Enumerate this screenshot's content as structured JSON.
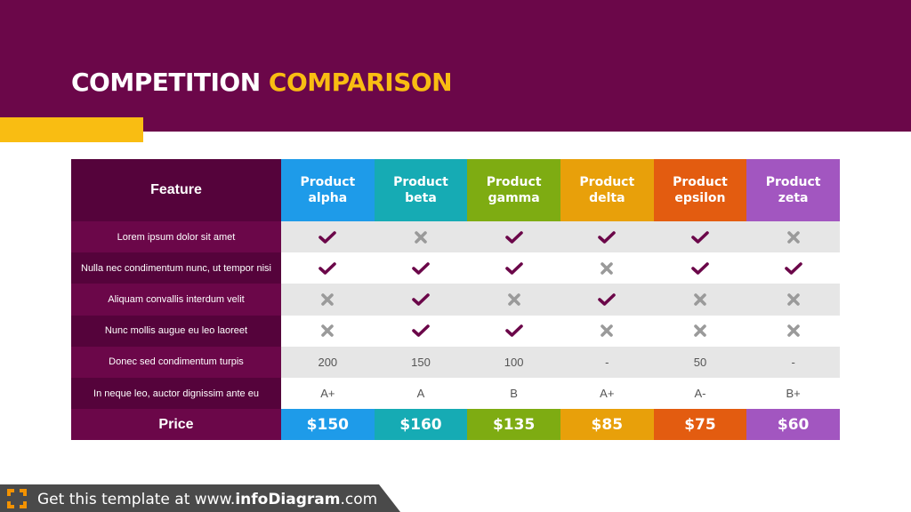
{
  "title": {
    "part1": "COMPETITION ",
    "part2": "COMPARISON"
  },
  "colors": {
    "header_bg": "#6b0749",
    "accent_yellow": "#f9bd12",
    "check": "#6b0749",
    "cross": "#9a9a9a"
  },
  "table": {
    "feature_header": "Feature",
    "products": [
      {
        "name": "Product alpha",
        "color": "#1e9be9",
        "price": "$150"
      },
      {
        "name": "Product beta",
        "color": "#16abb4",
        "price": "$160"
      },
      {
        "name": "Product gamma",
        "color": "#7eac12",
        "price": "$135"
      },
      {
        "name": "Product delta",
        "color": "#e8a00a",
        "price": "$85"
      },
      {
        "name": "Product epsilon",
        "color": "#e35c10",
        "price": "$75"
      },
      {
        "name": "Product zeta",
        "color": "#a256c0",
        "price": "$60"
      }
    ],
    "rows": [
      {
        "feature": "Lorem ipsum dolor sit amet",
        "values": [
          "check",
          "cross",
          "check",
          "check",
          "check",
          "cross"
        ]
      },
      {
        "feature": "Nulla nec condimentum nunc, ut tempor nisi",
        "values": [
          "check",
          "check",
          "check",
          "cross",
          "check",
          "check"
        ]
      },
      {
        "feature": "Aliquam convallis interdum velit",
        "values": [
          "cross",
          "check",
          "cross",
          "check",
          "cross",
          "cross"
        ]
      },
      {
        "feature": "Nunc mollis augue eu leo laoreet",
        "values": [
          "cross",
          "check",
          "check",
          "cross",
          "cross",
          "cross"
        ]
      },
      {
        "feature": "Donec sed condimentum turpis",
        "values": [
          "200",
          "150",
          "100",
          "-",
          "50",
          "-"
        ]
      },
      {
        "feature": "In neque leo, auctor dignissim ante eu",
        "values": [
          "A+",
          "A",
          "B",
          "A+",
          "A-",
          "B+"
        ]
      }
    ],
    "price_label": "Price"
  },
  "footer": {
    "prefix": "Get this template at www.",
    "brand": "infoDiagram",
    "suffix": ".com"
  }
}
